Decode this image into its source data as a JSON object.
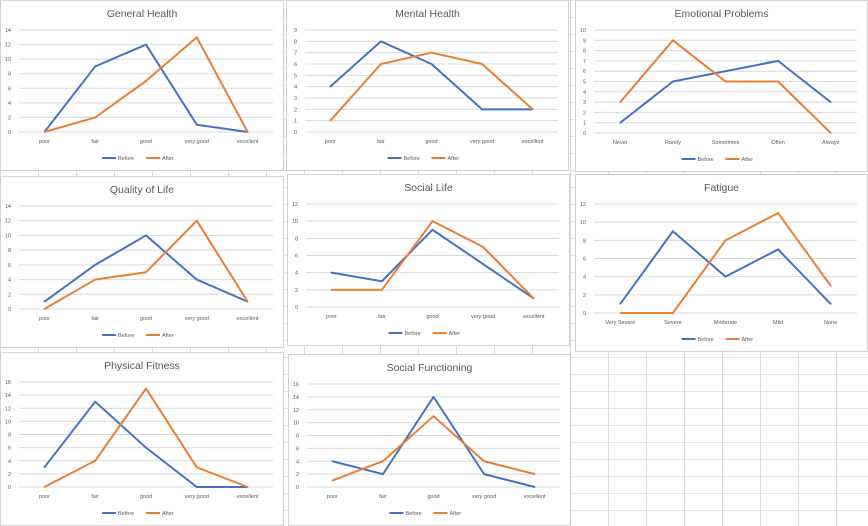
{
  "legend_position": "bottom",
  "colors": {
    "before": "#4472C4",
    "after": "#ED7D31",
    "grid": "#d9d9d9",
    "text": "#595959"
  },
  "chart_data": [
    {
      "type": "line",
      "title": "General Health",
      "categories": [
        "poor",
        "fair",
        "good",
        "very good",
        "excellent"
      ],
      "ylim": [
        0,
        14
      ],
      "yticks": [
        "0",
        "2",
        "4",
        "6",
        "8",
        "10",
        "12",
        "14"
      ],
      "grid": true,
      "series": [
        {
          "name": "Before",
          "values": [
            0,
            9,
            12,
            1,
            0
          ]
        },
        {
          "name": "After",
          "values": [
            0,
            2,
            7,
            13,
            0
          ]
        }
      ]
    },
    {
      "type": "line",
      "title": "Mental Health",
      "categories": [
        "poor",
        "fair",
        "good",
        "very good",
        "excellent"
      ],
      "ylim": [
        0,
        9
      ],
      "yticks": [
        "0",
        "1",
        "2",
        "3",
        "4",
        "5",
        "6",
        "7",
        "8",
        "9"
      ],
      "grid": true,
      "series": [
        {
          "name": "Before",
          "values": [
            4,
            8,
            6,
            2,
            2
          ]
        },
        {
          "name": "After",
          "values": [
            1,
            6,
            7,
            6,
            2
          ]
        }
      ]
    },
    {
      "type": "line",
      "title": "Emotional Problems",
      "categories": [
        "Never",
        "Rarely",
        "Sometimes",
        "Often",
        "Always"
      ],
      "ylim": [
        0,
        10
      ],
      "yticks": [
        "0",
        "1",
        "2",
        "3",
        "4",
        "5",
        "6",
        "7",
        "8",
        "9",
        "10"
      ],
      "grid": true,
      "series": [
        {
          "name": "Before",
          "values": [
            1,
            5,
            6,
            7,
            3
          ]
        },
        {
          "name": "After",
          "values": [
            3,
            9,
            5,
            5,
            0
          ]
        }
      ]
    },
    {
      "type": "line",
      "title": "Quality of Life",
      "categories": [
        "poor",
        "fair",
        "good",
        "very good",
        "excellent"
      ],
      "ylim": [
        0,
        14
      ],
      "yticks": [
        "0",
        "2",
        "4",
        "6",
        "8",
        "10",
        "12",
        "14"
      ],
      "grid": true,
      "series": [
        {
          "name": "Before",
          "values": [
            1,
            6,
            10,
            4,
            1
          ]
        },
        {
          "name": "After",
          "values": [
            0,
            4,
            5,
            12,
            1
          ]
        }
      ]
    },
    {
      "type": "line",
      "title": "Social Life",
      "categories": [
        "poor",
        "fair",
        "good",
        "very good",
        "excellent"
      ],
      "ylim": [
        0,
        12
      ],
      "yticks": [
        "0",
        "2",
        "4",
        "6",
        "8",
        "10",
        "12"
      ],
      "grid": true,
      "series": [
        {
          "name": "Before",
          "values": [
            4,
            3,
            9,
            5,
            1
          ]
        },
        {
          "name": "After",
          "values": [
            2,
            2,
            10,
            7,
            1
          ]
        }
      ]
    },
    {
      "type": "line",
      "title": "Fatigue",
      "categories": [
        "Very Severe",
        "Severe",
        "Moderate",
        "Mild",
        "None"
      ],
      "ylim": [
        0,
        12
      ],
      "yticks": [
        "0",
        "2",
        "4",
        "6",
        "8",
        "10",
        "12"
      ],
      "grid": true,
      "series": [
        {
          "name": "Before",
          "values": [
            1,
            9,
            4,
            7,
            1
          ]
        },
        {
          "name": "After",
          "values": [
            0,
            0,
            8,
            11,
            3
          ]
        }
      ]
    },
    {
      "type": "line",
      "title": "Physical Fitness",
      "categories": [
        "poor",
        "fair",
        "good",
        "very good",
        "excellent"
      ],
      "ylim": [
        0,
        16
      ],
      "yticks": [
        "0",
        "2",
        "4",
        "6",
        "8",
        "10",
        "12",
        "14",
        "16"
      ],
      "grid": true,
      "series": [
        {
          "name": "Before",
          "values": [
            3,
            13,
            6,
            0,
            0
          ]
        },
        {
          "name": "After",
          "values": [
            0,
            4,
            15,
            3,
            0
          ]
        }
      ]
    },
    {
      "type": "line",
      "title": "Social Functioning",
      "categories": [
        "poor",
        "fair",
        "good",
        "very good",
        "excellent"
      ],
      "ylim": [
        0,
        16
      ],
      "yticks": [
        "0",
        "2",
        "4",
        "6",
        "8",
        "10",
        "12",
        "14",
        "16"
      ],
      "grid": true,
      "series": [
        {
          "name": "Before",
          "values": [
            4,
            2,
            14,
            2,
            0
          ]
        },
        {
          "name": "After",
          "values": [
            1,
            4,
            11,
            4,
            2
          ]
        }
      ]
    }
  ]
}
